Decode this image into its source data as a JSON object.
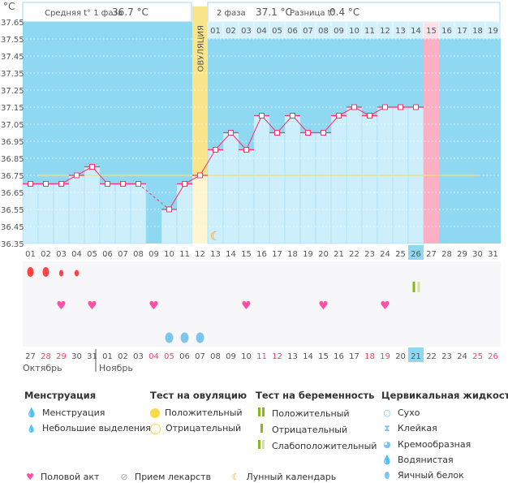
{
  "chart_data": {
    "type": "line",
    "unit": "°C",
    "ylim": [
      36.35,
      37.65
    ],
    "yticks": [
      "37.65",
      "37.55",
      "37.45",
      "37.35",
      "37.25",
      "37.15",
      "37.05",
      "36.95",
      "36.85",
      "36.75",
      "36.65",
      "36.55",
      "36.45",
      "36.35"
    ],
    "cycle_days": [
      "01",
      "02",
      "03",
      "04",
      "05",
      "06",
      "07",
      "08",
      "09",
      "10",
      "11",
      "12",
      "13",
      "14",
      "15",
      "16",
      "17",
      "18",
      "19",
      "20",
      "21",
      "22",
      "23",
      "24",
      "25",
      "26",
      "27",
      "28",
      "29",
      "30",
      "31"
    ],
    "temperatures": [
      36.7,
      36.7,
      36.7,
      36.75,
      36.8,
      36.7,
      36.7,
      36.7,
      null,
      36.55,
      36.7,
      36.75,
      36.9,
      37.0,
      36.9,
      37.1,
      37.0,
      37.1,
      37.0,
      37.0,
      37.1,
      37.15,
      37.1,
      37.15,
      37.15,
      37.15,
      null,
      null,
      null,
      null,
      null
    ],
    "coverline": 36.75,
    "ovulation_day": 12,
    "ovulation_label": "ОВУЛЯЦИЯ",
    "expected_period_day": 27,
    "current_day": 26,
    "phase2_days": [
      "01",
      "02",
      "03",
      "04",
      "05",
      "06",
      "07",
      "08",
      "09",
      "10",
      "11",
      "12",
      "13",
      "14",
      "15",
      "16",
      "17",
      "18",
      "19"
    ],
    "moon_day": 13,
    "menstruation": {
      "1": "heavy",
      "2": "heavy",
      "3": "light",
      "4": "light"
    },
    "pregnancy_test": {
      "26": "positive-faint"
    },
    "intercourse": [
      3,
      5,
      9,
      15,
      20,
      24
    ],
    "cervical_fluid": {
      "10": "egg-white",
      "11": "egg-white",
      "12": "egg-white"
    },
    "calendar_dates": [
      "27",
      "28",
      "29",
      "30",
      "31",
      "01",
      "02",
      "03",
      "04",
      "05",
      "06",
      "07",
      "08",
      "09",
      "10",
      "11",
      "12",
      "13",
      "14",
      "15",
      "16",
      "17",
      "18",
      "19",
      "20",
      "21",
      "22",
      "23",
      "24",
      "25",
      "26"
    ],
    "weekend_dates_idx": [
      1,
      2,
      8,
      9,
      15,
      16,
      22,
      23,
      29,
      30
    ],
    "months": [
      "Октябрь",
      "Ноябрь"
    ]
  },
  "header": {
    "phase1_label": "Средняя t° 1 фаза",
    "phase1_value": "36.7 °C",
    "phase2_label": "2 фаза",
    "phase2_value": "37.1 °C",
    "diff_label": "Разница t°",
    "diff_value": "0.4 °C"
  },
  "colors": {
    "bg_dark": "#8fd8f2",
    "bar": "#cdeefb",
    "line": "#ff2f6a",
    "coverline": "#f6e27a",
    "ovulation": "#fbe58a",
    "period": "#fbb0c4",
    "today": "#8fd8f2",
    "weekend": "#ff3b6b"
  },
  "legend": {
    "menstruation": {
      "title": "Менструация",
      "items": [
        "Менструация",
        "Небольшие выделения"
      ]
    },
    "ovulation_test": {
      "title": "Тест на овуляцию",
      "items": [
        "Положительный",
        "Отрицательный"
      ]
    },
    "pregnancy_test": {
      "title": "Тест на беременность",
      "items": [
        "Положительный",
        "Отрицательный",
        "Слабоположительный"
      ]
    },
    "cervical": {
      "title": "Цервикальная жидкость",
      "items": [
        "Сухо",
        "Клейкая",
        "Кремообразная",
        "Водянистая",
        "Яичный белок"
      ]
    },
    "bottom": [
      "Половой акт",
      "Прием лекарств",
      "Лунный календарь"
    ]
  }
}
